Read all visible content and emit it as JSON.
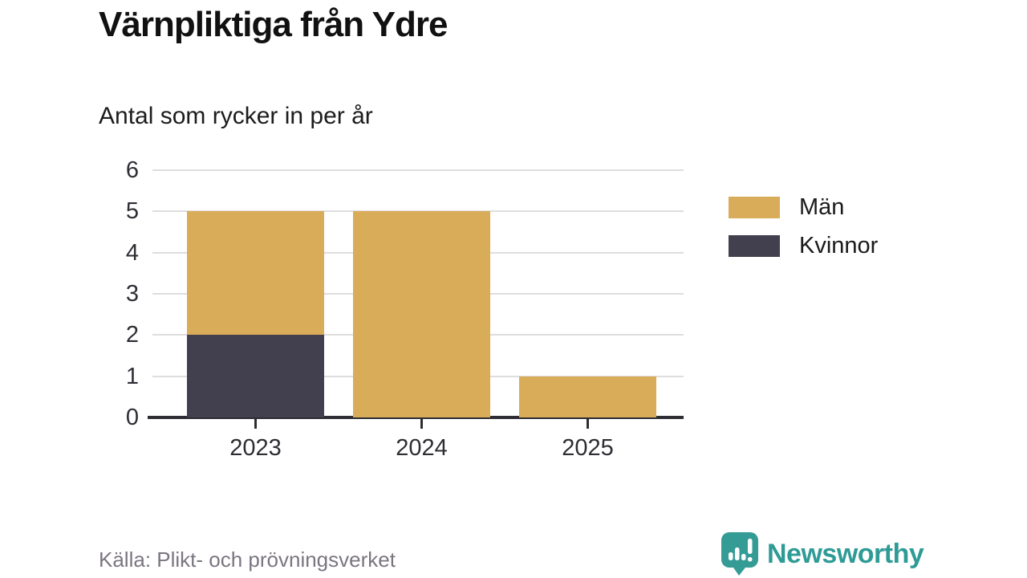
{
  "header": {
    "title": "Värnpliktiga från Ydre",
    "subtitle": "Antal som rycker in per år"
  },
  "chart_data": {
    "type": "bar",
    "stacked": true,
    "title": "Värnpliktiga från Ydre",
    "subtitle": "Antal som rycker in per år",
    "categories": [
      "2023",
      "2024",
      "2025"
    ],
    "series": [
      {
        "name": "Män",
        "color": "#d9ac5a",
        "values": [
          3,
          5,
          1
        ]
      },
      {
        "name": "Kvinnor",
        "color": "#423f4e",
        "values": [
          2,
          0,
          0
        ]
      }
    ],
    "totals": [
      5,
      5,
      1
    ],
    "xlabel": "",
    "ylabel": "",
    "ylim": [
      0,
      6
    ],
    "yticks": [
      0,
      1,
      2,
      3,
      4,
      5,
      6
    ],
    "grid": "horizontal",
    "legend_position": "right"
  },
  "footer": {
    "source": "Källa: Plikt- och prövningsverket",
    "brand": "Newsworthy"
  },
  "colors": {
    "accent_gold": "#d9ac5a",
    "accent_dark": "#423f4e",
    "brand_teal": "#2f9b96",
    "gridline": "#dedede",
    "axis": "#2e2d33"
  }
}
